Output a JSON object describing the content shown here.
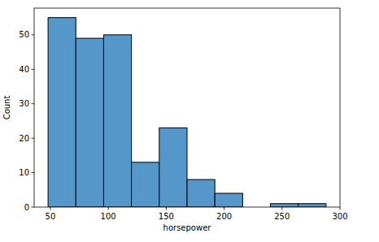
{
  "chart_data": {
    "type": "histogram",
    "x_label": "horsepower",
    "y_label": "Count",
    "bins": [
      48,
      72,
      96,
      120,
      144,
      168,
      192,
      216,
      240,
      264,
      288
    ],
    "values": [
      55,
      49,
      50,
      13,
      23,
      8,
      4,
      0,
      1,
      1
    ],
    "color": "#5497c8",
    "xlim": [
      36,
      300
    ],
    "xticks": [
      50,
      100,
      150,
      200,
      250,
      300
    ],
    "ylim": [
      0,
      57.75
    ],
    "yticks": [
      0,
      10,
      20,
      30,
      40,
      50
    ],
    "grid": false
  }
}
